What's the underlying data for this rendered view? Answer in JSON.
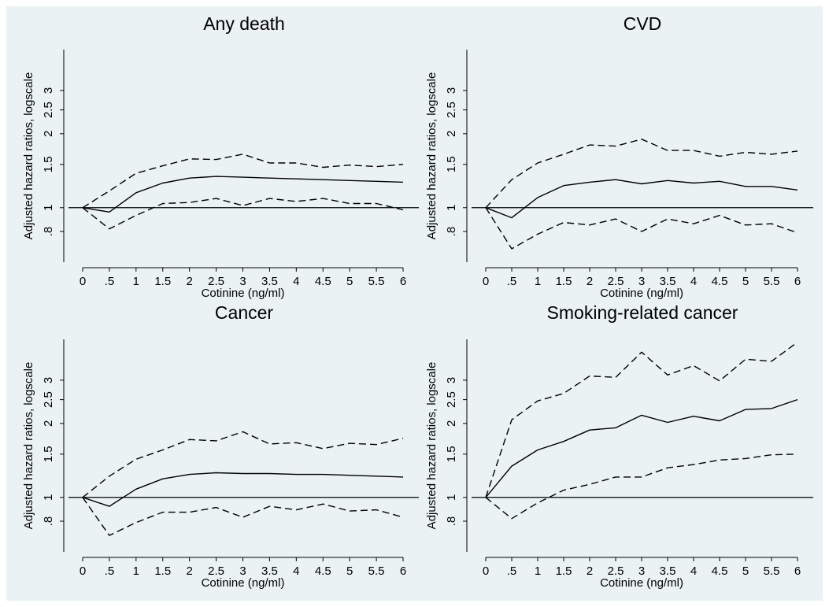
{
  "chart_data": [
    {
      "type": "line",
      "title": "Any death",
      "xlabel": "Cotinine (ng/ml)",
      "ylabel": "Adjusted hazard ratios, logscale",
      "x": [
        0,
        0.5,
        1,
        1.5,
        2,
        2.5,
        3,
        3.5,
        4,
        4.5,
        5,
        5.5,
        6
      ],
      "xtick_labels": [
        "0",
        ".5",
        "1",
        "1.5",
        "2",
        "2.5",
        "3",
        "3.5",
        "4",
        "4.5",
        "5",
        "5.5",
        "6"
      ],
      "ytick_values": [
        0.8,
        1,
        1.5,
        2,
        2.5,
        3
      ],
      "ytick_labels": [
        ".8",
        "1",
        "1.5",
        "2",
        "2.5",
        "3"
      ],
      "y_scale": "log",
      "ylim": [
        0.6,
        4.4
      ],
      "reference_line": 1,
      "series": [
        {
          "style": "solid",
          "values": [
            1.0,
            0.96,
            1.15,
            1.26,
            1.32,
            1.34,
            1.33,
            1.32,
            1.31,
            1.3,
            1.29,
            1.28,
            1.27
          ]
        },
        {
          "style": "dashed",
          "values": [
            1.0,
            1.17,
            1.38,
            1.48,
            1.58,
            1.57,
            1.65,
            1.52,
            1.52,
            1.46,
            1.49,
            1.47,
            1.5
          ]
        },
        {
          "style": "dashed",
          "values": [
            1.0,
            0.82,
            0.93,
            1.04,
            1.05,
            1.09,
            1.02,
            1.09,
            1.06,
            1.09,
            1.04,
            1.04,
            0.98
          ]
        }
      ]
    },
    {
      "type": "line",
      "title": "CVD",
      "xlabel": "Cotinine (ng/ml)",
      "ylabel": "Adjusted hazard ratios, logscale",
      "x": [
        0,
        0.5,
        1,
        1.5,
        2,
        2.5,
        3,
        3.5,
        4,
        4.5,
        5,
        5.5,
        6
      ],
      "xtick_labels": [
        "0",
        ".5",
        "1",
        "1.5",
        "2",
        "2.5",
        "3",
        "3.5",
        "4",
        "4.5",
        "5",
        "5.5",
        "6"
      ],
      "ytick_values": [
        0.8,
        1,
        1.5,
        2,
        2.5,
        3
      ],
      "ytick_labels": [
        ".8",
        "1",
        "1.5",
        "2",
        "2.5",
        "3"
      ],
      "y_scale": "log",
      "ylim": [
        0.6,
        4.4
      ],
      "reference_line": 1,
      "series": [
        {
          "style": "solid",
          "values": [
            1.0,
            0.91,
            1.1,
            1.23,
            1.27,
            1.3,
            1.25,
            1.29,
            1.26,
            1.28,
            1.22,
            1.22,
            1.18
          ]
        },
        {
          "style": "dashed",
          "values": [
            1.0,
            1.3,
            1.52,
            1.65,
            1.8,
            1.78,
            1.9,
            1.71,
            1.71,
            1.62,
            1.68,
            1.65,
            1.7
          ]
        },
        {
          "style": "dashed",
          "values": [
            1.0,
            0.68,
            0.78,
            0.87,
            0.85,
            0.9,
            0.8,
            0.9,
            0.86,
            0.93,
            0.85,
            0.86,
            0.79
          ]
        }
      ]
    },
    {
      "type": "line",
      "title": "Cancer",
      "xlabel": "Cotinine (ng/ml)",
      "ylabel": "Adjusted hazard ratios, logscale",
      "x": [
        0,
        0.5,
        1,
        1.5,
        2,
        2.5,
        3,
        3.5,
        4,
        4.5,
        5,
        5.5,
        6
      ],
      "xtick_labels": [
        "0",
        ".5",
        "1",
        "1.5",
        "2",
        "2.5",
        "3",
        "3.5",
        "4",
        "4.5",
        "5",
        "5.5",
        "6"
      ],
      "ytick_values": [
        0.8,
        1,
        1.5,
        2,
        2.5,
        3
      ],
      "ytick_labels": [
        ".8",
        "1",
        "1.5",
        "2",
        "2.5",
        "3"
      ],
      "y_scale": "log",
      "ylim": [
        0.6,
        4.4
      ],
      "reference_line": 1,
      "series": [
        {
          "style": "solid",
          "values": [
            1.0,
            0.92,
            1.08,
            1.19,
            1.24,
            1.26,
            1.25,
            1.25,
            1.24,
            1.24,
            1.23,
            1.22,
            1.21
          ]
        },
        {
          "style": "dashed",
          "values": [
            1.0,
            1.22,
            1.43,
            1.56,
            1.72,
            1.7,
            1.85,
            1.65,
            1.67,
            1.58,
            1.66,
            1.64,
            1.74
          ]
        },
        {
          "style": "dashed",
          "values": [
            1.0,
            0.7,
            0.79,
            0.87,
            0.87,
            0.91,
            0.83,
            0.92,
            0.89,
            0.94,
            0.88,
            0.89,
            0.83
          ]
        }
      ]
    },
    {
      "type": "line",
      "title": "Smoking-related cancer",
      "xlabel": "Cotinine (ng/ml)",
      "ylabel": "Adjusted hazard ratios, logscale",
      "x": [
        0,
        0.5,
        1,
        1.5,
        2,
        2.5,
        3,
        3.5,
        4,
        4.5,
        5,
        5.5,
        6
      ],
      "xtick_labels": [
        "0",
        ".5",
        "1",
        "1.5",
        "2",
        "2.5",
        "3",
        "3.5",
        "4",
        "4.5",
        "5",
        "5.5",
        "6"
      ],
      "ytick_values": [
        0.8,
        1,
        1.5,
        2,
        2.5,
        3
      ],
      "ytick_labels": [
        ".8",
        "1",
        "1.5",
        "2",
        "2.5",
        "3"
      ],
      "y_scale": "log",
      "ylim": [
        0.6,
        4.4
      ],
      "reference_line": 1,
      "series": [
        {
          "style": "solid",
          "values": [
            1.0,
            1.34,
            1.56,
            1.69,
            1.88,
            1.92,
            2.16,
            2.02,
            2.14,
            2.05,
            2.28,
            2.3,
            2.5
          ]
        },
        {
          "style": "dashed",
          "values": [
            1.0,
            2.07,
            2.47,
            2.65,
            3.12,
            3.08,
            3.9,
            3.15,
            3.44,
            2.98,
            3.65,
            3.58,
            4.28
          ]
        },
        {
          "style": "dashed",
          "values": [
            1.0,
            0.82,
            0.95,
            1.07,
            1.13,
            1.21,
            1.21,
            1.32,
            1.36,
            1.42,
            1.44,
            1.49,
            1.5
          ]
        }
      ]
    }
  ]
}
